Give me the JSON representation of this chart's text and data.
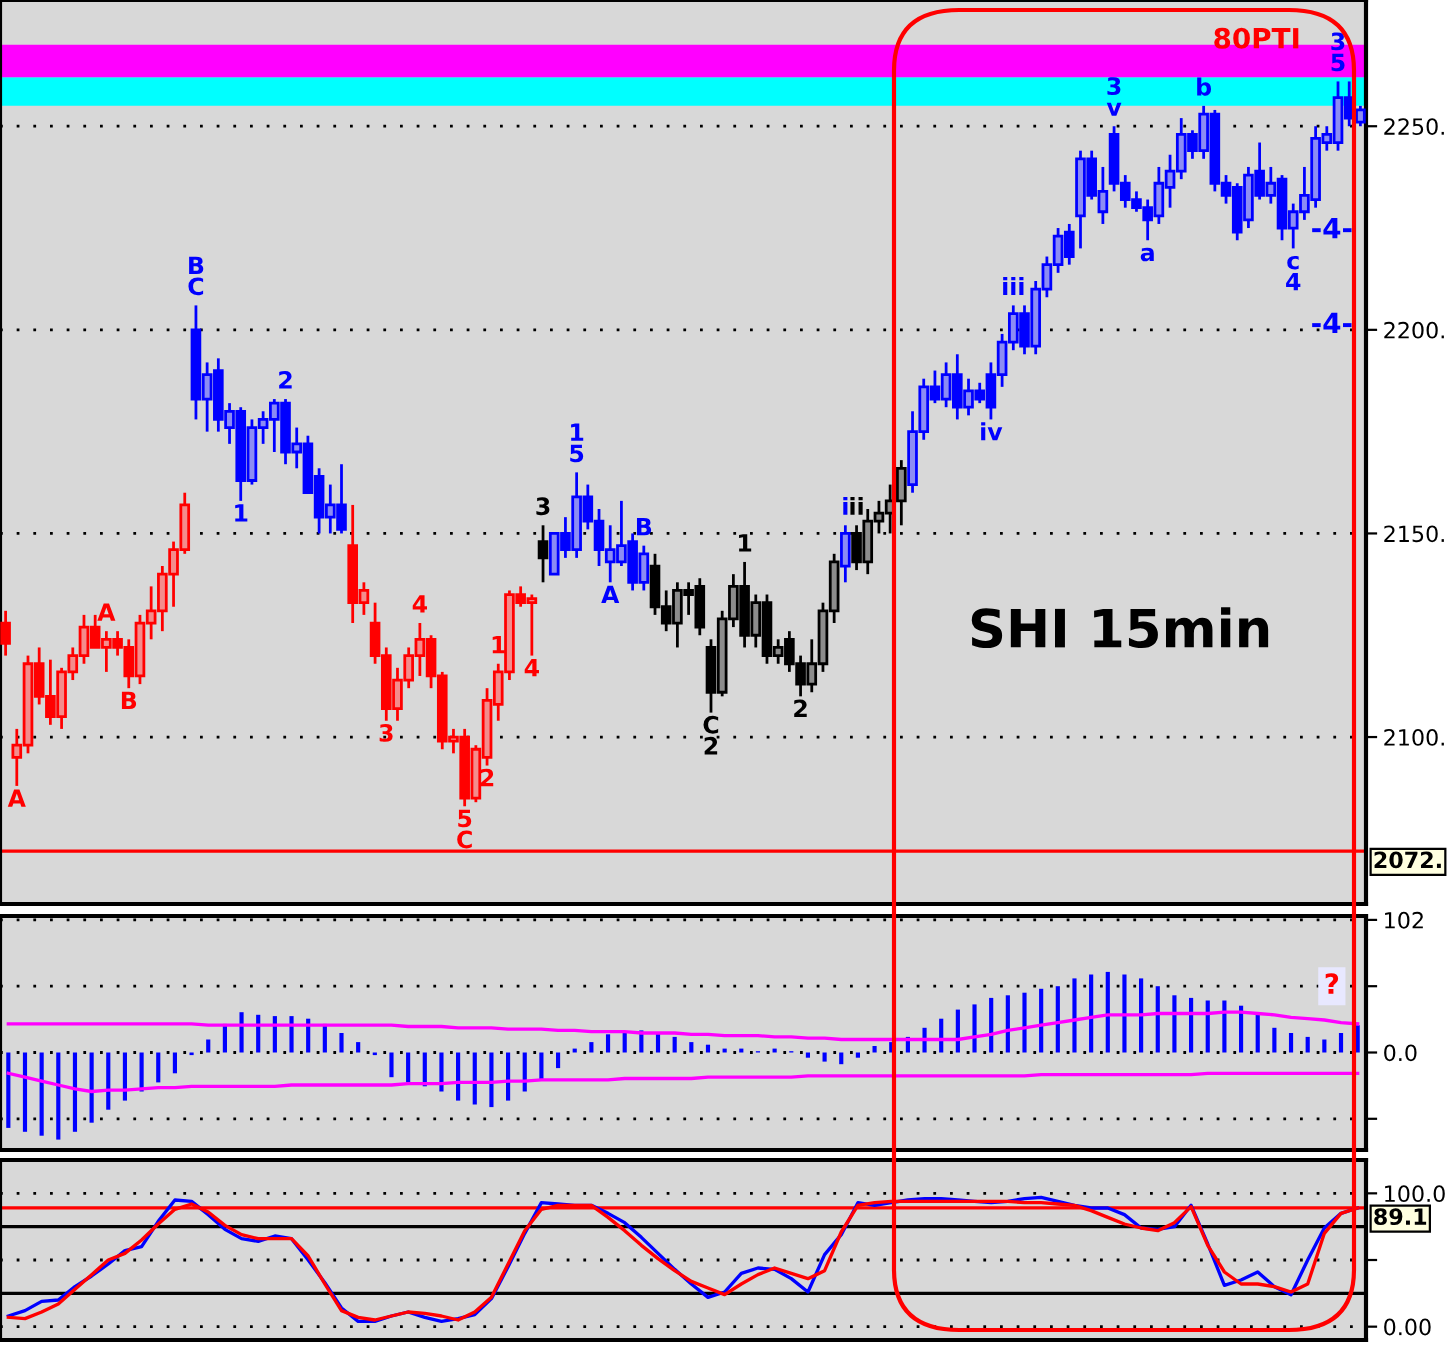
{
  "chart_data": [
    {
      "type": "candlestick",
      "title": "SHI 15min",
      "categories": [
        null,
        null,
        null,
        null,
        null,
        null,
        null,
        null,
        null,
        null,
        null,
        null,
        null,
        null,
        null,
        null,
        null,
        null,
        null,
        null,
        null,
        null,
        null,
        null,
        null,
        null,
        null,
        null,
        null,
        null,
        null,
        null,
        null,
        null,
        null,
        null,
        null,
        null,
        null,
        null,
        null,
        null,
        null,
        null,
        null,
        null,
        null,
        null,
        null,
        null,
        null,
        null,
        null,
        null,
        null,
        null,
        null,
        null,
        null,
        null,
        null,
        null,
        null,
        null,
        null,
        null,
        null,
        null,
        null,
        null,
        null,
        null,
        null,
        null,
        null,
        null,
        null,
        null,
        null,
        null,
        null,
        null,
        null,
        null,
        null,
        null,
        null,
        null,
        null,
        null,
        null,
        null,
        null,
        null,
        null,
        null,
        null,
        null,
        null,
        null,
        null,
        null,
        null,
        null,
        null,
        null,
        null,
        null,
        null,
        null,
        null,
        null,
        null,
        null,
        null,
        null,
        null,
        null,
        null,
        null,
        null,
        null
      ],
      "ohlc": [
        [
          2128,
          2131,
          2120,
          2123
        ],
        [
          2095,
          2102,
          2088,
          2098
        ],
        [
          2098,
          2120,
          2096,
          2118
        ],
        [
          2118,
          2122,
          2108,
          2110
        ],
        [
          2110,
          2119,
          2103,
          2105
        ],
        [
          2105,
          2117,
          2102,
          2116
        ],
        [
          2116,
          2122,
          2114,
          2120
        ],
        [
          2120,
          2130,
          2118,
          2127
        ],
        [
          2127,
          2130,
          2122,
          2122
        ],
        [
          2122,
          2126,
          2116,
          2124
        ],
        [
          2124,
          2126,
          2120,
          2122
        ],
        [
          2122,
          2124,
          2112,
          2115
        ],
        [
          2115,
          2130,
          2113,
          2128
        ],
        [
          2128,
          2137,
          2124,
          2131
        ],
        [
          2131,
          2142,
          2126,
          2140
        ],
        [
          2140,
          2148,
          2132,
          2146
        ],
        [
          2146,
          2160,
          2145,
          2157
        ],
        [
          2200,
          2206,
          2178,
          2183
        ],
        [
          2183,
          2192,
          2175,
          2189
        ],
        [
          2190,
          2193,
          2175,
          2178
        ],
        [
          2176,
          2182,
          2172,
          2180
        ],
        [
          2180,
          2181,
          2158,
          2163
        ],
        [
          2163,
          2178,
          2162,
          2176
        ],
        [
          2176,
          2180,
          2172,
          2178
        ],
        [
          2178,
          2183,
          2170,
          2182
        ],
        [
          2182,
          2183,
          2167,
          2170
        ],
        [
          2170,
          2176,
          2166,
          2172
        ],
        [
          2172,
          2174,
          2160,
          2160
        ],
        [
          2164,
          2166,
          2150,
          2154
        ],
        [
          2154,
          2162,
          2150,
          2157
        ],
        [
          2157,
          2167,
          2150,
          2151
        ],
        [
          2147,
          2157,
          2128,
          2133
        ],
        [
          2133,
          2138,
          2130,
          2136
        ],
        [
          2128,
          2133,
          2118,
          2120
        ],
        [
          2120,
          2122,
          2104,
          2107
        ],
        [
          2107,
          2117,
          2104,
          2114
        ],
        [
          2114,
          2122,
          2112,
          2120
        ],
        [
          2120,
          2128,
          2115,
          2124
        ],
        [
          2124,
          2125,
          2112,
          2115
        ],
        [
          2115,
          2116,
          2097,
          2099
        ],
        [
          2099,
          2102,
          2096,
          2100
        ],
        [
          2100,
          2102,
          2083,
          2085
        ],
        [
          2085,
          2098,
          2084,
          2097
        ],
        [
          2095,
          2112,
          2093,
          2109
        ],
        [
          2108,
          2118,
          2104,
          2116
        ],
        [
          2116,
          2136,
          2114,
          2135
        ],
        [
          2135,
          2137,
          2132,
          2133
        ],
        [
          2133,
          2135,
          2120,
          2134
        ],
        [
          2148,
          2152,
          2138,
          2144
        ],
        [
          2140,
          2150,
          2140,
          2150
        ],
        [
          2150,
          2154,
          2144,
          2146
        ],
        [
          2146,
          2165,
          2144,
          2159
        ],
        [
          2159,
          2162,
          2151,
          2153
        ],
        [
          2153,
          2156,
          2142,
          2146
        ],
        [
          2143,
          2152,
          2138,
          2146
        ],
        [
          2143,
          2158,
          2142,
          2147
        ],
        [
          2148,
          2150,
          2136,
          2138
        ],
        [
          2138,
          2147,
          2136,
          2145
        ],
        [
          2142,
          2145,
          2130,
          2132
        ],
        [
          2132,
          2136,
          2126,
          2128
        ],
        [
          2128,
          2138,
          2122,
          2136
        ],
        [
          2136,
          2138,
          2130,
          2135
        ],
        [
          2137,
          2139,
          2125,
          2127
        ],
        [
          2122,
          2124,
          2106,
          2111
        ],
        [
          2111,
          2131,
          2110,
          2129
        ],
        [
          2129,
          2140,
          2127,
          2137
        ],
        [
          2137,
          2143,
          2122,
          2125
        ],
        [
          2125,
          2135,
          2122,
          2133
        ],
        [
          2133,
          2135,
          2118,
          2120
        ],
        [
          2120,
          2124,
          2118,
          2122
        ],
        [
          2124,
          2126,
          2116,
          2118
        ],
        [
          2118,
          2120,
          2110,
          2113
        ],
        [
          2113,
          2124,
          2111,
          2118
        ],
        [
          2118,
          2133,
          2116,
          2131
        ],
        [
          2131,
          2145,
          2128,
          2143
        ],
        [
          2142,
          2152,
          2138,
          2150
        ],
        [
          2150,
          2152,
          2141,
          2143
        ],
        [
          2143,
          2156,
          2140,
          2153
        ],
        [
          2153,
          2158,
          2150,
          2155
        ],
        [
          2155,
          2162,
          2150,
          2158
        ],
        [
          2158,
          2168,
          2152,
          2166
        ],
        [
          2162,
          2180,
          2160,
          2175
        ],
        [
          2175,
          2188,
          2173,
          2186
        ],
        [
          2186,
          2190,
          2182,
          2183
        ],
        [
          2183,
          2192,
          2181,
          2189
        ],
        [
          2189,
          2194,
          2178,
          2181
        ],
        [
          2181,
          2188,
          2179,
          2185
        ],
        [
          2185,
          2187,
          2182,
          2183
        ],
        [
          2189,
          2192,
          2178,
          2181
        ],
        [
          2189,
          2199,
          2186,
          2197
        ],
        [
          2197,
          2206,
          2195,
          2204
        ],
        [
          2204,
          2206,
          2194,
          2196
        ],
        [
          2196,
          2212,
          2194,
          2210
        ],
        [
          2210,
          2218,
          2208,
          2216
        ],
        [
          2216,
          2225,
          2214,
          2223
        ],
        [
          2224,
          2226,
          2216,
          2218
        ],
        [
          2228,
          2244,
          2220,
          2242
        ],
        [
          2242,
          2244,
          2232,
          2233
        ],
        [
          2229,
          2240,
          2226,
          2234
        ],
        [
          2248,
          2250,
          2234,
          2236
        ],
        [
          2236,
          2238,
          2230,
          2232
        ],
        [
          2232,
          2234,
          2229,
          2230
        ],
        [
          2230,
          2232,
          2222,
          2227
        ],
        [
          2228,
          2240,
          2226,
          2236
        ],
        [
          2235,
          2243,
          2230,
          2239
        ],
        [
          2239,
          2252,
          2237,
          2248
        ],
        [
          2248,
          2249,
          2242,
          2244
        ],
        [
          2244,
          2255,
          2242,
          2253
        ],
        [
          2253,
          2254,
          2234,
          2236
        ],
        [
          2236,
          2238,
          2231,
          2233
        ],
        [
          2235,
          2236,
          2222,
          2224
        ],
        [
          2227,
          2240,
          2225,
          2238
        ],
        [
          2239,
          2246,
          2232,
          2233
        ],
        [
          2233,
          2240,
          2231,
          2236
        ],
        [
          2237,
          2238,
          2222,
          2225
        ],
        [
          2225,
          2231,
          2220,
          2229
        ],
        [
          2229,
          2240,
          2227,
          2233
        ],
        [
          2232,
          2250,
          2230,
          2247
        ],
        [
          2246,
          2250,
          2244,
          2248
        ],
        [
          2246,
          2261,
          2244,
          2257
        ],
        [
          2257,
          2261,
          2250,
          2252
        ],
        [
          2251,
          2255,
          2250,
          2254
        ]
      ],
      "colors": [
        "#ff0000",
        "#ff0000",
        "#ff0000",
        "#ff0000",
        "#ff0000",
        "#ff0000",
        "#ff0000",
        "#ff0000",
        "#ff0000",
        "#ff0000",
        "#ff0000",
        "#ff0000",
        "#ff0000",
        "#ff0000",
        "#ff0000",
        "#ff0000",
        "#ff0000",
        "#0000ff",
        "#0000ff",
        "#0000ff",
        "#0000ff",
        "#0000ff",
        "#0000ff",
        "#0000ff",
        "#0000ff",
        "#0000ff",
        "#0000ff",
        "#0000ff",
        "#0000ff",
        "#0000ff",
        "#0000ff",
        "#ff0000",
        "#ff0000",
        "#ff0000",
        "#ff0000",
        "#ff0000",
        "#ff0000",
        "#ff0000",
        "#ff0000",
        "#ff0000",
        "#ff0000",
        "#ff0000",
        "#ff0000",
        "#ff0000",
        "#ff0000",
        "#ff0000",
        "#ff0000",
        "#ff0000",
        "#000000",
        "#0000ff",
        "#0000ff",
        "#0000ff",
        "#0000ff",
        "#0000ff",
        "#0000ff",
        "#0000ff",
        "#0000ff",
        "#0000ff",
        "#000000",
        "#000000",
        "#000000",
        "#000000",
        "#000000",
        "#000000",
        "#000000",
        "#000000",
        "#000000",
        "#000000",
        "#000000",
        "#000000",
        "#000000",
        "#000000",
        "#000000",
        "#000000",
        "#000000",
        "#0000ff",
        "#000000",
        "#000000",
        "#000000",
        "#000000",
        "#000000",
        "#0000ff",
        "#0000ff",
        "#0000ff",
        "#0000ff",
        "#0000ff",
        "#0000ff",
        "#0000ff",
        "#0000ff",
        "#0000ff",
        "#0000ff",
        "#0000ff",
        "#0000ff",
        "#0000ff",
        "#0000ff",
        "#0000ff",
        "#0000ff",
        "#0000ff",
        "#0000ff",
        "#0000ff",
        "#0000ff",
        "#0000ff",
        "#0000ff",
        "#0000ff",
        "#0000ff",
        "#0000ff",
        "#0000ff",
        "#0000ff",
        "#0000ff",
        "#0000ff",
        "#0000ff",
        "#0000ff",
        "#0000ff",
        "#0000ff",
        "#0000ff",
        "#0000ff",
        "#0000ff",
        "#0000ff",
        "#0000ff",
        "#0000ff",
        "#0000ff",
        "#0000ff"
      ],
      "value_labels": [
        null,
        "A",
        null,
        null,
        null,
        null,
        null,
        null,
        null,
        "A",
        null,
        "B",
        null,
        null,
        null,
        null,
        null,
        "B\nC",
        null,
        null,
        null,
        "1",
        null,
        null,
        null,
        "2",
        null,
        null,
        null,
        null,
        null,
        null,
        null,
        null,
        "3",
        null,
        null,
        "4",
        null,
        null,
        null,
        "5\nC",
        null,
        "2",
        "1",
        null,
        null,
        "4",
        "3",
        null,
        null,
        "1\n5",
        null,
        null,
        "A",
        null,
        null,
        "B",
        null,
        null,
        null,
        null,
        null,
        "C\n2",
        null,
        null,
        "1",
        null,
        null,
        null,
        null,
        "2",
        null,
        null,
        null,
        "i",
        "ii",
        null,
        null,
        null,
        null,
        null,
        null,
        null,
        null,
        null,
        null,
        null,
        "iv",
        null,
        "iii",
        null,
        null,
        null,
        null,
        null,
        null,
        null,
        null,
        "3\nv",
        null,
        null,
        "a",
        null,
        null,
        null,
        null,
        "b",
        null,
        null,
        null,
        null,
        null,
        null,
        null,
        "c\n4",
        null,
        null,
        null,
        "3\n5",
        null,
        null
      ],
      "ylim": [
        2059,
        2281
      ],
      "yticks": [
        {
          "value": 2100,
          "label": "2100."
        },
        {
          "value": 2150,
          "label": "2150."
        },
        {
          "value": 2200,
          "label": "2200."
        },
        {
          "value": 2250,
          "label": "2250."
        }
      ],
      "grid": "y",
      "ref_lines": [
        {
          "axis": "y",
          "value": 2072,
          "label": "2072.",
          "color": "#ff0000"
        }
      ],
      "bands": [
        {
          "axis": "y",
          "from": 2255,
          "to": 2262,
          "color": "#00ffff"
        },
        {
          "axis": "y",
          "from": 2262,
          "to": 2270,
          "color": "#ff00ff"
        }
      ],
      "annotations": [
        "-4-",
        "-4-",
        "80PTI"
      ]
    },
    {
      "type": "bar",
      "categories": [
        null,
        null,
        null,
        null,
        null,
        null,
        null,
        null,
        null,
        null,
        null,
        null,
        null,
        null,
        null,
        null,
        null,
        null,
        null,
        null,
        null,
        null,
        null,
        null,
        null,
        null,
        null,
        null,
        null,
        null,
        null,
        null,
        null,
        null,
        null,
        null,
        null,
        null,
        null,
        null,
        null,
        null,
        null,
        null,
        null,
        null,
        null,
        null,
        null,
        null,
        null,
        null,
        null,
        null,
        null,
        null,
        null,
        null,
        null,
        null,
        null,
        null,
        null,
        null,
        null,
        null,
        null,
        null,
        null,
        null,
        null,
        null,
        null,
        null,
        null,
        null,
        null,
        null,
        null,
        null,
        null,
        null
      ],
      "series": [
        {
          "color": "#0000ff",
          "values": [
            -58,
            -61,
            -64,
            -67,
            -61,
            -54,
            -44,
            -37,
            -30,
            -23,
            -16,
            -2,
            10,
            22,
            31,
            29,
            28,
            28,
            26,
            22,
            15,
            8,
            -2,
            -19,
            -23,
            -26,
            -30,
            -37,
            -40,
            -42,
            -37,
            -30,
            -21,
            -12,
            3,
            8,
            14,
            15,
            17,
            15,
            12,
            8,
            6,
            3,
            3,
            1,
            3,
            1,
            -4,
            -7,
            -9,
            -4,
            5,
            8,
            12,
            19,
            26,
            33,
            37,
            42,
            44,
            46,
            49,
            51,
            57,
            60,
            62,
            60,
            57,
            51,
            44,
            42,
            40,
            40,
            36,
            29,
            19,
            15,
            12,
            10,
            15,
            21
          ]
        },
        {
          "type": "line",
          "color": "#ff00ff",
          "values": [
            22,
            22,
            22,
            22,
            22,
            22,
            22,
            22,
            22,
            22,
            22,
            22,
            21,
            21,
            21,
            21,
            21,
            21,
            21,
            21,
            21,
            21,
            21,
            21,
            20,
            20,
            20,
            19,
            19,
            19,
            18,
            18,
            18,
            17,
            17,
            16,
            16,
            16,
            15,
            15,
            15,
            14,
            14,
            13,
            13,
            13,
            12,
            12,
            11,
            11,
            10,
            10,
            10,
            10,
            10,
            10,
            10,
            10,
            12,
            14,
            17,
            19,
            21,
            23,
            25,
            27,
            29,
            29,
            29,
            30,
            30,
            30,
            30,
            31,
            31,
            30,
            29,
            27,
            26,
            25,
            23,
            22
          ]
        },
        {
          "type": "line",
          "color": "#ff00ff",
          "values": [
            -16,
            -19,
            -22,
            -25,
            -28,
            -30,
            -29,
            -29,
            -28,
            -27,
            -27,
            -26,
            -26,
            -26,
            -26,
            -26,
            -26,
            -25,
            -25,
            -25,
            -25,
            -25,
            -25,
            -25,
            -24,
            -24,
            -24,
            -23,
            -23,
            -23,
            -22,
            -22,
            -21,
            -21,
            -21,
            -21,
            -21,
            -20,
            -20,
            -20,
            -20,
            -20,
            -19,
            -19,
            -19,
            -19,
            -19,
            -19,
            -18,
            -18,
            -18,
            -18,
            -18,
            -18,
            -18,
            -18,
            -18,
            -18,
            -18,
            -18,
            -18,
            -18,
            -17,
            -17,
            -17,
            -17,
            -17,
            -17,
            -17,
            -17,
            -17,
            -17,
            -16,
            -16,
            -16,
            -16,
            -16,
            -16,
            -16,
            -16,
            -16,
            -16
          ]
        }
      ],
      "ylim": [
        -75,
        105
      ],
      "yticks": [
        {
          "value": -51,
          "label": null
        },
        {
          "value": 0,
          "label": "0.0"
        },
        {
          "value": 51,
          "label": null
        },
        {
          "value": 102,
          "label": "102"
        }
      ],
      "grid": "y",
      "annotations": [
        "?"
      ]
    },
    {
      "type": "line",
      "categories": [
        null,
        null,
        null,
        null,
        null,
        null,
        null,
        null,
        null,
        null,
        null,
        null,
        null,
        null,
        null,
        null,
        null,
        null,
        null,
        null,
        null,
        null,
        null,
        null,
        null,
        null,
        null,
        null,
        null,
        null,
        null,
        null,
        null,
        null,
        null,
        null,
        null,
        null,
        null,
        null,
        null,
        null,
        null,
        null,
        null,
        null,
        null,
        null,
        null,
        null,
        null,
        null,
        null,
        null,
        null,
        null,
        null,
        null,
        null,
        null,
        null,
        null,
        null,
        null,
        null,
        null,
        null,
        null,
        null,
        null,
        null,
        null,
        null,
        null,
        null,
        null,
        null,
        null,
        null,
        null,
        null,
        null
      ],
      "series": [
        {
          "color": "#0000ff",
          "values": [
            8,
            12,
            19,
            20,
            30,
            38,
            47,
            57,
            60,
            79,
            95,
            94,
            84,
            73,
            66,
            64,
            68,
            66,
            50,
            33,
            14,
            4,
            4,
            8,
            11,
            7,
            4,
            6,
            9,
            21,
            45,
            70,
            93,
            92,
            91,
            91,
            85,
            78,
            67,
            55,
            43,
            32,
            22,
            26,
            40,
            44,
            43,
            36,
            26,
            54,
            69,
            93,
            91,
            93,
            95,
            96,
            96,
            95,
            94,
            93,
            94,
            96,
            97,
            94,
            91,
            89,
            89,
            84,
            74,
            73,
            75,
            91,
            62,
            31,
            35,
            41,
            30,
            24,
            50,
            74,
            85,
            89
          ]
        },
        {
          "color": "#ff0000",
          "values": [
            7,
            6,
            11,
            17,
            28,
            39,
            50,
            55,
            65,
            77,
            88,
            92,
            86,
            76,
            69,
            66,
            66,
            66,
            53,
            32,
            12,
            7,
            5,
            8,
            11,
            10,
            8,
            5,
            11,
            22,
            47,
            72,
            88,
            91,
            91,
            91,
            82,
            72,
            61,
            51,
            42,
            34,
            29,
            24,
            32,
            39,
            44,
            40,
            36,
            42,
            71,
            91,
            93,
            94,
            94,
            94,
            94,
            94,
            94,
            94,
            94,
            93,
            93,
            92,
            91,
            87,
            82,
            77,
            74,
            72,
            78,
            90,
            61,
            41,
            32,
            32,
            30,
            26,
            32,
            70,
            85,
            89
          ]
        }
      ],
      "ylim": [
        -10,
        125
      ],
      "yticks": [
        {
          "value": 0,
          "label": "0.00"
        },
        {
          "value": 50,
          "label": null
        },
        {
          "value": 100,
          "label": "100.0"
        }
      ],
      "grid": "y",
      "ref_lines": [
        {
          "axis": "y",
          "value": 75,
          "color": "#000000"
        },
        {
          "axis": "y",
          "value": 25,
          "color": "#000000"
        },
        {
          "axis": "y",
          "value": 89.1,
          "label": "89.1",
          "color": "#ff0000"
        }
      ]
    }
  ]
}
